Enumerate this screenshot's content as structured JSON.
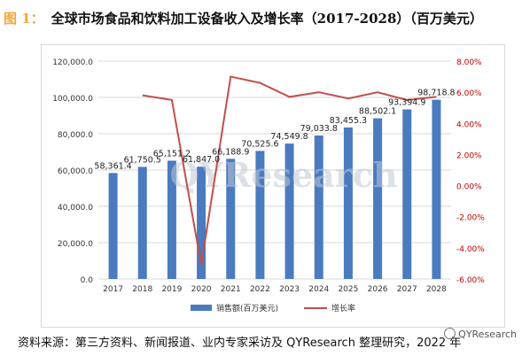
{
  "title": {
    "prefix": "图 1：",
    "text": "全球市场食品和饮料加工设备收入及增长率（2017-2028）（百万美元）"
  },
  "source": "资料来源：第三方资料、新闻报道、业内专家采访及 QYResearch 整理研究，2022 年",
  "watermark": {
    "center": "QYResearch",
    "corner": "QYResearch"
  },
  "colors": {
    "bar": "#4a7bbf",
    "line": "#c0504d",
    "axis_left": "#333333",
    "axis_right": "#c00000",
    "grid": "#d9d9d9",
    "title_accent": "#f0a83a"
  },
  "chart_data": {
    "type": "bar",
    "categories": [
      "2017",
      "2018",
      "2019",
      "2020",
      "2021",
      "2022",
      "2023",
      "2024",
      "2025",
      "2026",
      "2027",
      "2028"
    ],
    "series": [
      {
        "name": "销售额(百万美元)",
        "type": "bar",
        "axis": "left",
        "values": [
          58361.4,
          61750.5,
          65151.2,
          61847.0,
          66188.9,
          70525.6,
          74549.8,
          79033.8,
          83455.3,
          88502.1,
          93394.9,
          98718.8
        ],
        "labels": [
          "58,361.4",
          "61,750.5",
          "65,151.2",
          "61,847.0",
          "66,188.9",
          "70,525.6",
          "74,549.8",
          "79,033.8",
          "83,455.3",
          "88,502.1",
          "93,394.9",
          "98,718.8"
        ]
      },
      {
        "name": "增长率",
        "type": "line",
        "axis": "right",
        "values": [
          null,
          5.8,
          5.5,
          -5.1,
          7.0,
          6.6,
          5.7,
          6.0,
          5.6,
          6.0,
          5.5,
          5.7
        ]
      }
    ],
    "y_left": {
      "min": 0,
      "max": 120000,
      "step": 20000,
      "tick_labels": [
        "0.0",
        "20,000.0",
        "40,000.0",
        "60,000.0",
        "80,000.0",
        "100,000.0",
        "120,000.0"
      ]
    },
    "y_right": {
      "min": -6,
      "max": 8,
      "step": 2,
      "tick_labels": [
        "-6.00%",
        "-4.00%",
        "-2.00%",
        "0.00%",
        "2.00%",
        "4.00%",
        "6.00%",
        "8.00%"
      ]
    },
    "grid": true,
    "legend": "bottom"
  }
}
